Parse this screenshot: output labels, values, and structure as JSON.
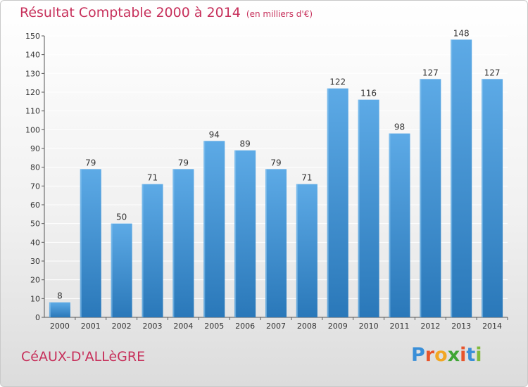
{
  "header": {
    "title": "Résultat Comptable 2000 à 2014",
    "unit": "(en milliers d'€)"
  },
  "footer": {
    "commune": "CéAUX-D'ALLèGRE",
    "logo_letters": [
      "P",
      "r",
      "o",
      "x",
      "i",
      "t",
      "i"
    ],
    "logo_colors": [
      "#3a8fd8",
      "#e8542b",
      "#f2a623",
      "#3fa535",
      "#e8542b",
      "#3a8fd8",
      "#7fba3a"
    ]
  },
  "colors": {
    "bar_top": "#5daae6",
    "bar_bottom": "#2a78b9",
    "title": "#c7305b",
    "grid": "#ffffff",
    "axis_text": "#333333"
  },
  "chart_data": {
    "type": "bar",
    "categories": [
      "2000",
      "2001",
      "2002",
      "2003",
      "2004",
      "2005",
      "2006",
      "2007",
      "2008",
      "2009",
      "2010",
      "2011",
      "2012",
      "2013",
      "2014"
    ],
    "values": [
      8,
      79,
      50,
      71,
      79,
      94,
      89,
      79,
      71,
      122,
      116,
      98,
      127,
      148,
      127
    ],
    "title": "Résultat Comptable 2000 à 2014",
    "xlabel": "",
    "ylabel": "",
    "ylim": [
      0,
      150
    ],
    "yticks": [
      0,
      10,
      20,
      30,
      40,
      50,
      60,
      70,
      80,
      90,
      100,
      110,
      120,
      130,
      140,
      150
    ],
    "grid": true,
    "data_labels": true
  }
}
